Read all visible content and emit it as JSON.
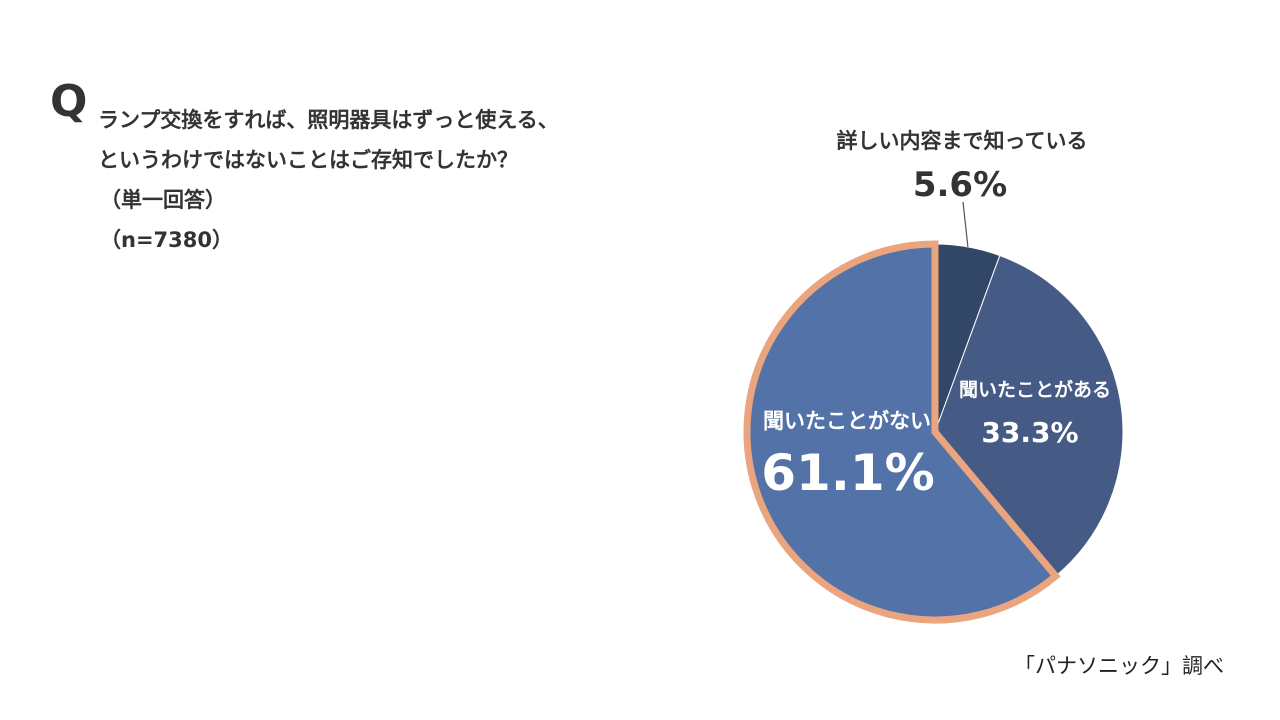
{
  "question": {
    "mark": "Q",
    "line1": "ランプ交換をすれば、照明器具はずっと使える、",
    "line2": "というわけではないことはご存知でしたか？",
    "line3": "（単一回答）",
    "line4": "（n=7380）"
  },
  "source": "「パナソニック」調べ",
  "chart_data": {
    "type": "pie",
    "start_angle_deg": 0,
    "direction": "clockwise",
    "slices": [
      {
        "label": "詳しい内容まで知っている",
        "value": 5.6,
        "value_label": "5.6%",
        "color": "#324668"
      },
      {
        "label": "聞いたことがある",
        "value": 33.3,
        "value_label": "33.3%",
        "color": "#455a84"
      },
      {
        "label": "聞いたことがない",
        "value": 61.1,
        "value_label": "61.1%",
        "color": "#5372a8",
        "highlight": true
      }
    ],
    "highlight_outline_color": "#eaa57f",
    "label_color_outside": "#333333",
    "label_color_inside": "#ffffff"
  }
}
